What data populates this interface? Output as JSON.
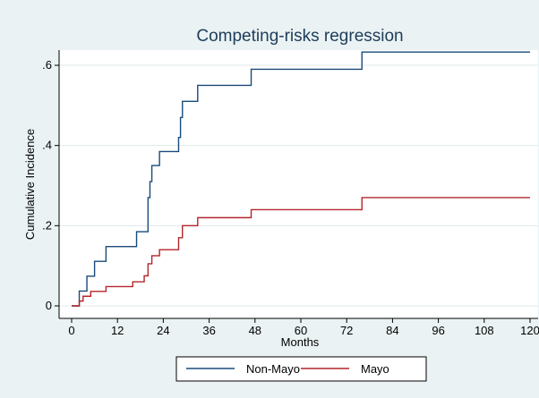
{
  "chart_data": {
    "type": "line",
    "title": "Competing-risks regression",
    "xlabel": "Months",
    "ylabel": "Cumulative Incidence",
    "xlim": [
      0,
      120
    ],
    "ylim": [
      0,
      0.65
    ],
    "x_ticks": [
      0,
      12,
      24,
      36,
      48,
      60,
      72,
      84,
      96,
      108,
      120
    ],
    "x_tick_labels": [
      "0",
      "12",
      "24",
      "36",
      "48",
      "60",
      "72",
      "84",
      "96",
      "108",
      "120"
    ],
    "y_ticks": [
      0,
      0.2,
      0.4,
      0.6
    ],
    "y_tick_labels": [
      "0",
      ".2",
      ".4",
      ".6"
    ],
    "grid": true,
    "legend_position": "bottom",
    "step": true,
    "colors": {
      "background": "#eaf2f3",
      "plot_area": "#ffffff",
      "grid": "#dfe8ea"
    },
    "series": [
      {
        "name": "Non-Mayo",
        "color": "#1a4a7a",
        "x": [
          0,
          2,
          4,
          6,
          9,
          17,
          20,
          20.5,
          21,
          23,
          28,
          28.5,
          29,
          30,
          33,
          47,
          76,
          120
        ],
        "y": [
          0,
          0.037,
          0.074,
          0.111,
          0.148,
          0.185,
          0.27,
          0.31,
          0.35,
          0.385,
          0.42,
          0.47,
          0.51,
          0.51,
          0.55,
          0.59,
          0.633,
          0.633
        ]
      },
      {
        "name": "Mayo",
        "color": "#b3262b",
        "x": [
          0,
          2,
          3,
          5,
          9,
          16,
          19,
          20,
          21,
          23,
          28,
          29,
          33,
          47,
          76,
          120
        ],
        "y": [
          0,
          0.012,
          0.024,
          0.036,
          0.048,
          0.06,
          0.075,
          0.105,
          0.125,
          0.14,
          0.17,
          0.2,
          0.22,
          0.24,
          0.27,
          0.27
        ]
      }
    ]
  }
}
